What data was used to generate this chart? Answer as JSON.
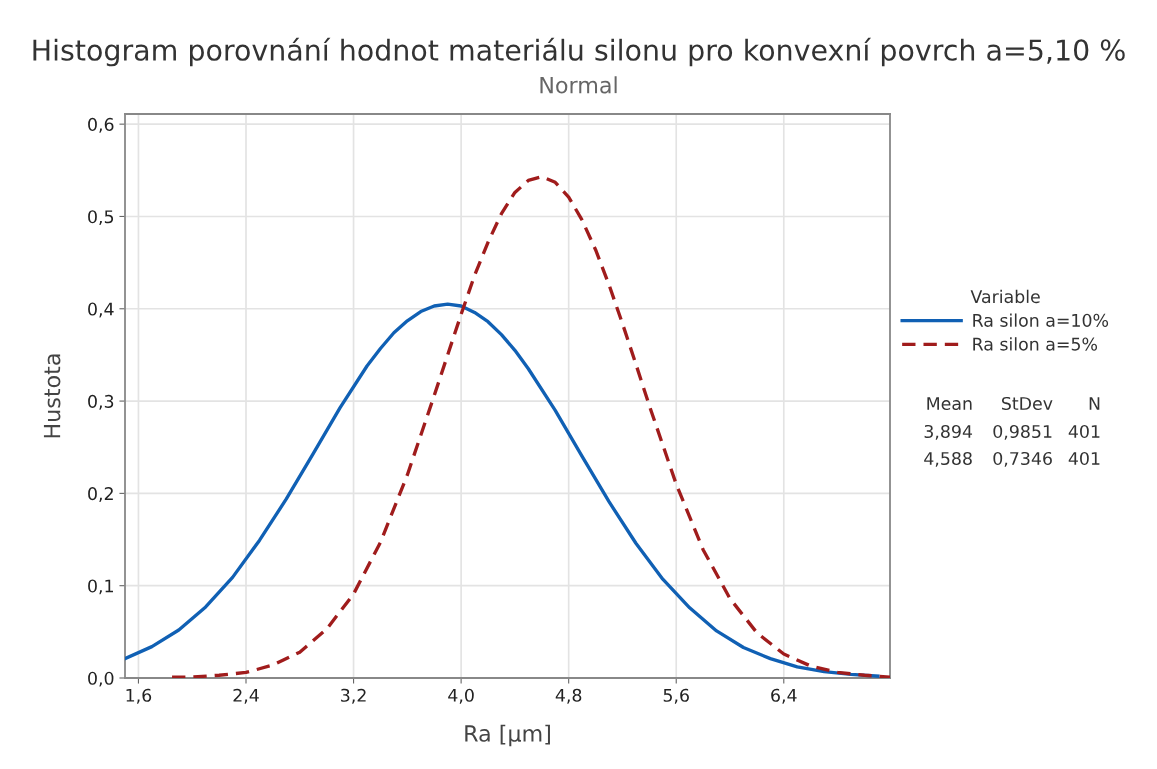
{
  "chart_data": {
    "type": "line",
    "title": "Histogram porovnání hodnot materiálu silonu pro konvexní povrch a=5,10 %",
    "subtitle": "Normal",
    "xlabel": "Ra [µm]",
    "ylabel": "Hustota",
    "legend_title": "Variable",
    "series": [
      {
        "name": "Ra silon a=10%",
        "color": "#1060b4",
        "line_style": "solid",
        "x": [
          1.5,
          1.7,
          1.9,
          2.1,
          2.3,
          2.5,
          2.7,
          2.9,
          3.1,
          3.3,
          3.4,
          3.5,
          3.6,
          3.7,
          3.8,
          3.9,
          4.0,
          4.1,
          4.2,
          4.3,
          4.4,
          4.5,
          4.7,
          4.9,
          5.1,
          5.3,
          5.5,
          5.7,
          5.9,
          6.1,
          6.3,
          6.5,
          6.7,
          6.9,
          7.1
        ],
        "values": [
          0.021,
          0.034,
          0.052,
          0.077,
          0.109,
          0.149,
          0.194,
          0.243,
          0.293,
          0.338,
          0.357,
          0.374,
          0.387,
          0.397,
          0.403,
          0.405,
          0.403,
          0.396,
          0.386,
          0.372,
          0.355,
          0.335,
          0.29,
          0.24,
          0.191,
          0.146,
          0.107,
          0.076,
          0.051,
          0.033,
          0.021,
          0.012,
          0.007,
          0.004,
          0.002
        ]
      },
      {
        "name": "Ra silon a=5%",
        "color": "#a01c1c",
        "line_style": "dashed",
        "x": [
          1.85,
          2.0,
          2.2,
          2.4,
          2.6,
          2.8,
          3.0,
          3.2,
          3.4,
          3.6,
          3.8,
          3.9,
          4.0,
          4.1,
          4.2,
          4.3,
          4.4,
          4.5,
          4.6,
          4.7,
          4.8,
          4.9,
          5.0,
          5.1,
          5.2,
          5.3,
          5.4,
          5.6,
          5.8,
          6.0,
          6.2,
          6.4,
          6.6,
          6.8,
          7.0,
          7.19
        ],
        "values": [
          0.001,
          0.001,
          0.003,
          0.006,
          0.014,
          0.028,
          0.053,
          0.091,
          0.147,
          0.22,
          0.306,
          0.35,
          0.394,
          0.436,
          0.472,
          0.503,
          0.526,
          0.539,
          0.543,
          0.537,
          0.521,
          0.496,
          0.464,
          0.426,
          0.384,
          0.34,
          0.295,
          0.21,
          0.139,
          0.086,
          0.049,
          0.026,
          0.013,
          0.006,
          0.003,
          0.001
        ]
      }
    ],
    "xlim": [
      1.5,
      7.19
    ],
    "xticks": [
      {
        "value": 1.6,
        "label": "1,6"
      },
      {
        "value": 2.4,
        "label": "2,4"
      },
      {
        "value": 3.2,
        "label": "3,2"
      },
      {
        "value": 4.0,
        "label": "4,0"
      },
      {
        "value": 4.8,
        "label": "4,8"
      },
      {
        "value": 5.6,
        "label": "5,6"
      },
      {
        "value": 6.4,
        "label": "6,4"
      }
    ],
    "ylim": [
      0,
      0.611
    ],
    "yticks": [
      {
        "value": 0,
        "label": "0,0"
      },
      {
        "value": 0.1,
        "label": "0,1"
      },
      {
        "value": 0.2,
        "label": "0,2"
      },
      {
        "value": 0.3,
        "label": "0,3"
      },
      {
        "value": 0.4,
        "label": "0,4"
      },
      {
        "value": 0.5,
        "label": "0,5"
      },
      {
        "value": 0.6,
        "label": "0,6"
      }
    ],
    "grid": true,
    "legend": "right",
    "annotations": [
      "Mean",
      "StDev",
      "N",
      "3,894",
      "0,9851",
      "401",
      "4,588",
      "0,7346",
      "401"
    ]
  }
}
